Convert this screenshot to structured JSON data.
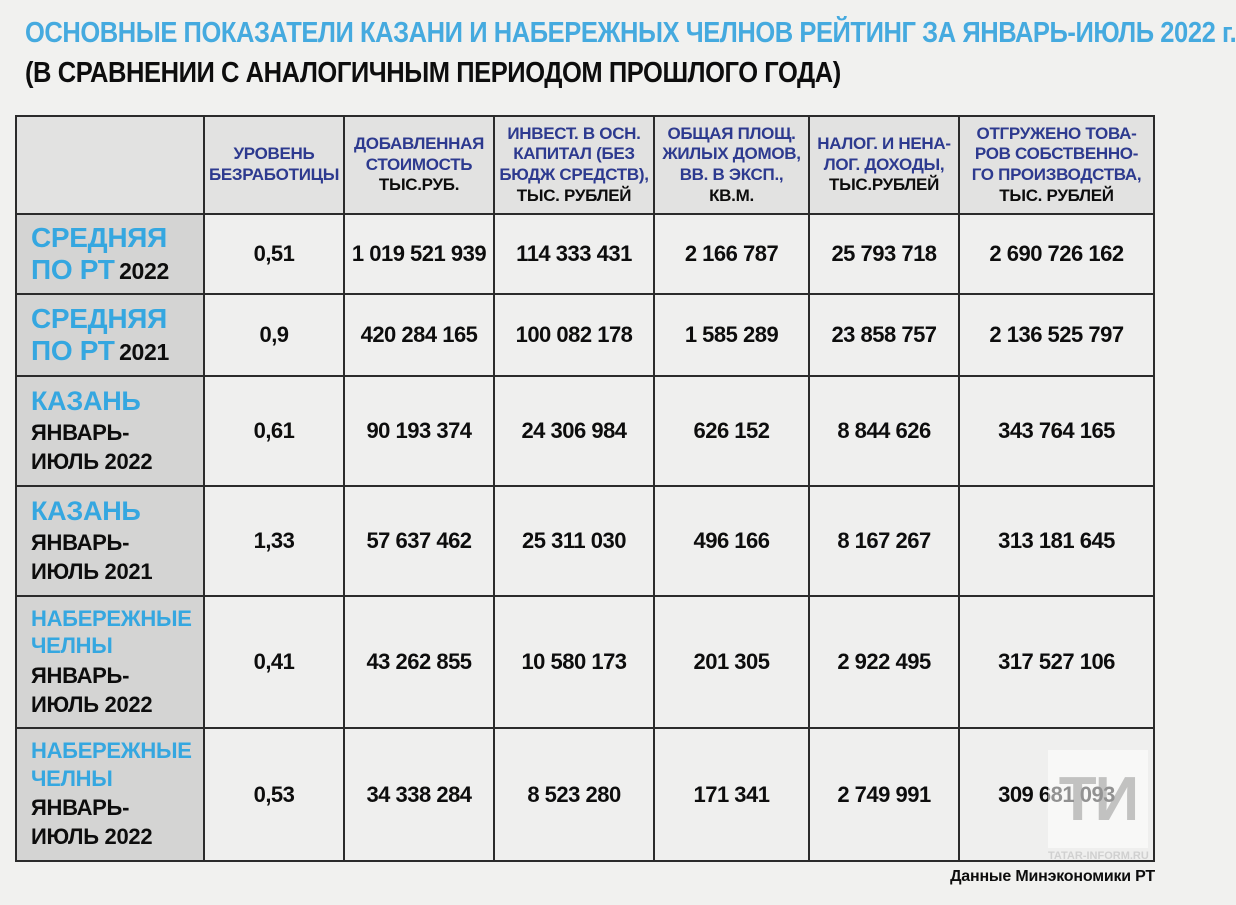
{
  "title": "ОСНОВНЫЕ ПОКАЗАТЕЛИ КАЗАНИ И НАБЕРЕЖНЫХ ЧЕЛНОВ РЕЙТИНГ ЗА ЯНВАРЬ-ИЮЛЬ 2022 г.",
  "subtitle": "(В СРАВНЕНИИ С АНАЛОГИЧНЫМ ПЕРИОДОМ ПРОШЛОГО ГОДА)",
  "source_note": "Данные  Минэкономики РТ",
  "watermark": "ТИ",
  "watermark_url": "TATAR-INFORM.RU",
  "colors": {
    "title_blue": "#45aadf",
    "row_label_blue": "#35a7e0",
    "header_navy": "#2d3a8f",
    "label_column_bg": "#d4d4d3",
    "header_bg": "#e2e2e1",
    "cell_bg": "#efefee",
    "border": "#2b2b2b"
  },
  "chart_data": {
    "type": "table",
    "title": "ОСНОВНЫЕ ПОКАЗАТЕЛИ КАЗАНИ И НАБЕРЕЖНЫХ ЧЕЛНОВ РЕЙТИНГ ЗА ЯНВАРЬ-ИЮЛЬ 2022 г.",
    "subtitle": "(В СРАВНЕНИИ С АНАЛОГИЧНЫМ ПЕРИОДОМ ПРОШЛОГО ГОДА)",
    "headers": [
      {
        "label": "УРОВЕНЬ\nБЕЗРАБОТИЦЫ",
        "unit": ""
      },
      {
        "label": "ДОБАВЛЕННАЯ\nСТОИМОСТЬ",
        "unit": "ТЫС.РУБ."
      },
      {
        "label": "ИНВЕСТ. В ОСН.\nКАПИТАЛ (БЕЗ\nБЮДЖ СРЕДСТВ),",
        "unit": "ТЫС. РУБЛЕЙ"
      },
      {
        "label": "ОБЩАЯ ПЛОЩ.\nЖИЛЫХ ДОМОВ,\nВВ. В ЭКСП.,",
        "unit": "КВ.М."
      },
      {
        "label": "НАЛОГ. И НЕНА-\nЛОГ. ДОХОДЫ,",
        "unit": "ТЫС.РУБЛЕЙ"
      },
      {
        "label": "ОТГРУЖЕНО ТОВА-\nРОВ СОБСТВЕННО-\nГО ПРОИЗВОДСТВА,",
        "unit": "ТЫС. РУБЛЕЙ"
      }
    ],
    "rows": [
      {
        "name": "СРЕДНЯЯ\nПО РТ",
        "period": "2022",
        "values": [
          "0,51",
          "1 019 521 939",
          "114 333 431",
          "2 166 787",
          "25 793 718",
          "2 690 726 162"
        ]
      },
      {
        "name": "СРЕДНЯЯ\nПО РТ",
        "period": "2021",
        "values": [
          "0,9",
          "420 284 165",
          "100 082 178",
          "1 585 289",
          "23 858 757",
          "2 136 525 797"
        ]
      },
      {
        "name": "КАЗАНЬ",
        "period": "ЯНВАРЬ-\nИЮЛЬ 2022",
        "values": [
          "0,61",
          "90 193 374",
          "24 306 984",
          "626 152",
          "8 844 626",
          "343 764 165"
        ]
      },
      {
        "name": "КАЗАНЬ",
        "period": "ЯНВАРЬ-\nИЮЛЬ 2021",
        "values": [
          "1,33",
          "57 637 462",
          "25 311 030",
          "496 166",
          "8 167 267",
          "313 181 645"
        ]
      },
      {
        "name": "НАБЕРЕЖНЫЕ\nЧЕЛНЫ",
        "period": "ЯНВАРЬ-\nИЮЛЬ 2022",
        "values": [
          "0,41",
          "43 262 855",
          "10 580 173",
          "201 305",
          "2 922 495",
          "317 527 106"
        ]
      },
      {
        "name": "НАБЕРЕЖНЫЕ\nЧЕЛНЫ",
        "period": "ЯНВАРЬ-\nИЮЛЬ 2022",
        "values": [
          "0,53",
          "34 338 284",
          "8 523 280",
          "171 341",
          "2 749 991",
          "309 681 093"
        ]
      }
    ]
  }
}
